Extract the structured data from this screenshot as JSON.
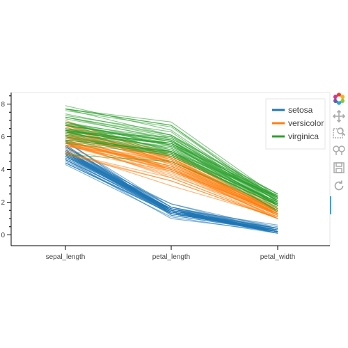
{
  "colors": {
    "setosa": "#1f77b4",
    "versicolor": "#ff7f0e",
    "virginica": "#2ca02c",
    "axis": "#000000",
    "frame": "#e5e5e5",
    "tool_icon": "#aaaaaa"
  },
  "toolbar": {
    "tools": [
      {
        "icon": "bokeh-logo-icon",
        "interactable": false
      },
      {
        "icon": "pan-icon",
        "interactable": true,
        "active": true
      },
      {
        "icon": "box-zoom-icon",
        "interactable": true
      },
      {
        "icon": "wheel-zoom-icon",
        "interactable": true
      },
      {
        "icon": "save-icon",
        "interactable": true
      },
      {
        "icon": "reset-icon",
        "interactable": true
      }
    ]
  },
  "chart_data": {
    "type": "line",
    "chart_subtype": "parallel-coordinates",
    "title": "",
    "xlabel": "",
    "ylabel": "",
    "categories": [
      "sepal_length",
      "petal_length",
      "petal_width"
    ],
    "ylim": [
      -0.6,
      8.6
    ],
    "yticks": [
      0,
      2,
      4,
      6,
      8
    ],
    "legend_position": "top-right",
    "grid": false,
    "series": [
      {
        "name": "setosa",
        "color_key": "setosa",
        "lines": [
          [
            5.1,
            1.4,
            0.2
          ],
          [
            4.9,
            1.4,
            0.2
          ],
          [
            4.7,
            1.3,
            0.2
          ],
          [
            4.6,
            1.5,
            0.2
          ],
          [
            5.0,
            1.4,
            0.2
          ],
          [
            5.4,
            1.7,
            0.4
          ],
          [
            4.6,
            1.4,
            0.3
          ],
          [
            5.0,
            1.5,
            0.2
          ],
          [
            4.4,
            1.4,
            0.2
          ],
          [
            4.9,
            1.5,
            0.1
          ],
          [
            5.4,
            1.5,
            0.2
          ],
          [
            4.8,
            1.6,
            0.2
          ],
          [
            4.8,
            1.4,
            0.1
          ],
          [
            4.3,
            1.1,
            0.1
          ],
          [
            5.8,
            1.2,
            0.2
          ],
          [
            5.7,
            1.5,
            0.4
          ],
          [
            5.4,
            1.3,
            0.4
          ],
          [
            5.1,
            1.4,
            0.3
          ],
          [
            5.7,
            1.7,
            0.3
          ],
          [
            5.1,
            1.5,
            0.3
          ],
          [
            5.4,
            1.7,
            0.2
          ],
          [
            5.1,
            1.5,
            0.4
          ],
          [
            4.6,
            1.0,
            0.2
          ],
          [
            5.1,
            1.7,
            0.5
          ],
          [
            4.8,
            1.9,
            0.2
          ],
          [
            5.0,
            1.6,
            0.2
          ],
          [
            5.0,
            1.6,
            0.4
          ],
          [
            5.2,
            1.5,
            0.2
          ],
          [
            5.2,
            1.4,
            0.2
          ],
          [
            4.7,
            1.6,
            0.2
          ],
          [
            4.8,
            1.6,
            0.2
          ],
          [
            5.4,
            1.5,
            0.4
          ],
          [
            5.2,
            1.5,
            0.1
          ],
          [
            5.5,
            1.4,
            0.2
          ],
          [
            4.9,
            1.5,
            0.2
          ],
          [
            5.0,
            1.2,
            0.2
          ],
          [
            5.5,
            1.3,
            0.2
          ],
          [
            4.9,
            1.4,
            0.1
          ],
          [
            4.4,
            1.3,
            0.2
          ],
          [
            5.1,
            1.5,
            0.2
          ],
          [
            5.0,
            1.3,
            0.3
          ],
          [
            4.5,
            1.3,
            0.3
          ],
          [
            4.4,
            1.3,
            0.2
          ],
          [
            5.0,
            1.6,
            0.6
          ],
          [
            5.1,
            1.9,
            0.4
          ],
          [
            4.8,
            1.4,
            0.3
          ],
          [
            5.1,
            1.6,
            0.2
          ],
          [
            4.6,
            1.4,
            0.2
          ],
          [
            5.3,
            1.5,
            0.2
          ],
          [
            5.0,
            1.4,
            0.2
          ]
        ]
      },
      {
        "name": "versicolor",
        "color_key": "versicolor",
        "lines": [
          [
            7.0,
            4.7,
            1.4
          ],
          [
            6.4,
            4.5,
            1.5
          ],
          [
            6.9,
            4.9,
            1.5
          ],
          [
            5.5,
            4.0,
            1.3
          ],
          [
            6.5,
            4.6,
            1.5
          ],
          [
            5.7,
            4.5,
            1.3
          ],
          [
            6.3,
            4.7,
            1.6
          ],
          [
            4.9,
            3.3,
            1.0
          ],
          [
            6.6,
            4.6,
            1.3
          ],
          [
            5.2,
            3.9,
            1.4
          ],
          [
            5.0,
            3.5,
            1.0
          ],
          [
            5.9,
            4.2,
            1.5
          ],
          [
            6.0,
            4.0,
            1.0
          ],
          [
            6.1,
            4.7,
            1.4
          ],
          [
            5.6,
            3.6,
            1.3
          ],
          [
            6.7,
            4.4,
            1.4
          ],
          [
            5.6,
            4.5,
            1.5
          ],
          [
            5.8,
            4.1,
            1.0
          ],
          [
            6.2,
            4.5,
            1.5
          ],
          [
            5.6,
            3.9,
            1.1
          ],
          [
            5.9,
            4.8,
            1.8
          ],
          [
            6.1,
            4.0,
            1.3
          ],
          [
            6.3,
            4.9,
            1.5
          ],
          [
            6.1,
            4.7,
            1.2
          ],
          [
            6.4,
            4.3,
            1.3
          ],
          [
            6.6,
            4.4,
            1.4
          ],
          [
            6.8,
            4.8,
            1.4
          ],
          [
            6.7,
            5.0,
            1.7
          ],
          [
            6.0,
            4.5,
            1.5
          ],
          [
            5.7,
            3.5,
            1.0
          ],
          [
            5.5,
            3.8,
            1.1
          ],
          [
            5.5,
            3.7,
            1.0
          ],
          [
            5.8,
            3.9,
            1.2
          ],
          [
            6.0,
            5.1,
            1.6
          ],
          [
            5.4,
            4.5,
            1.5
          ],
          [
            6.0,
            4.5,
            1.6
          ],
          [
            6.7,
            4.7,
            1.5
          ],
          [
            6.3,
            4.4,
            1.3
          ],
          [
            5.6,
            4.1,
            1.3
          ],
          [
            5.5,
            4.0,
            1.3
          ],
          [
            5.5,
            4.4,
            1.2
          ],
          [
            6.1,
            4.6,
            1.4
          ],
          [
            5.8,
            4.0,
            1.2
          ],
          [
            5.0,
            3.3,
            1.0
          ],
          [
            5.6,
            4.2,
            1.3
          ],
          [
            5.7,
            4.2,
            1.2
          ],
          [
            5.7,
            4.2,
            1.3
          ],
          [
            6.2,
            4.3,
            1.3
          ],
          [
            5.1,
            3.0,
            1.1
          ],
          [
            5.7,
            4.1,
            1.3
          ]
        ]
      },
      {
        "name": "virginica",
        "color_key": "virginica",
        "lines": [
          [
            6.3,
            6.0,
            2.5
          ],
          [
            5.8,
            5.1,
            1.9
          ],
          [
            7.1,
            5.9,
            2.1
          ],
          [
            6.3,
            5.6,
            1.8
          ],
          [
            6.5,
            5.8,
            2.2
          ],
          [
            7.6,
            6.6,
            2.1
          ],
          [
            4.9,
            4.5,
            1.7
          ],
          [
            7.3,
            6.3,
            1.8
          ],
          [
            6.7,
            5.8,
            1.8
          ],
          [
            7.2,
            6.1,
            2.5
          ],
          [
            6.5,
            5.1,
            2.0
          ],
          [
            6.4,
            5.3,
            1.9
          ],
          [
            6.8,
            5.5,
            2.1
          ],
          [
            5.7,
            5.0,
            2.0
          ],
          [
            5.8,
            5.1,
            2.4
          ],
          [
            6.4,
            5.3,
            2.3
          ],
          [
            6.5,
            5.5,
            1.8
          ],
          [
            7.7,
            6.7,
            2.2
          ],
          [
            7.7,
            6.9,
            2.3
          ],
          [
            6.0,
            5.0,
            1.5
          ],
          [
            6.9,
            5.7,
            2.3
          ],
          [
            5.6,
            4.9,
            2.0
          ],
          [
            7.7,
            6.7,
            2.0
          ],
          [
            6.3,
            4.9,
            1.8
          ],
          [
            6.7,
            5.7,
            2.1
          ],
          [
            7.2,
            6.0,
            1.8
          ],
          [
            6.2,
            4.8,
            1.8
          ],
          [
            6.1,
            4.9,
            1.8
          ],
          [
            6.4,
            5.6,
            2.1
          ],
          [
            7.2,
            5.8,
            1.6
          ],
          [
            7.4,
            6.1,
            1.9
          ],
          [
            7.9,
            6.4,
            2.0
          ],
          [
            6.4,
            5.6,
            2.2
          ],
          [
            6.3,
            5.1,
            1.5
          ],
          [
            6.1,
            5.6,
            1.4
          ],
          [
            7.7,
            6.1,
            2.3
          ],
          [
            6.3,
            5.6,
            2.4
          ],
          [
            6.4,
            5.5,
            1.8
          ],
          [
            6.0,
            4.8,
            1.8
          ],
          [
            6.9,
            5.4,
            2.1
          ],
          [
            6.7,
            5.6,
            2.4
          ],
          [
            6.9,
            5.1,
            2.3
          ],
          [
            5.8,
            5.1,
            1.9
          ],
          [
            6.8,
            5.9,
            2.3
          ],
          [
            6.7,
            5.7,
            2.5
          ],
          [
            6.7,
            5.2,
            2.3
          ],
          [
            6.3,
            5.0,
            1.9
          ],
          [
            6.5,
            5.2,
            2.0
          ],
          [
            6.2,
            5.4,
            2.3
          ],
          [
            5.9,
            5.1,
            1.8
          ]
        ]
      }
    ]
  }
}
